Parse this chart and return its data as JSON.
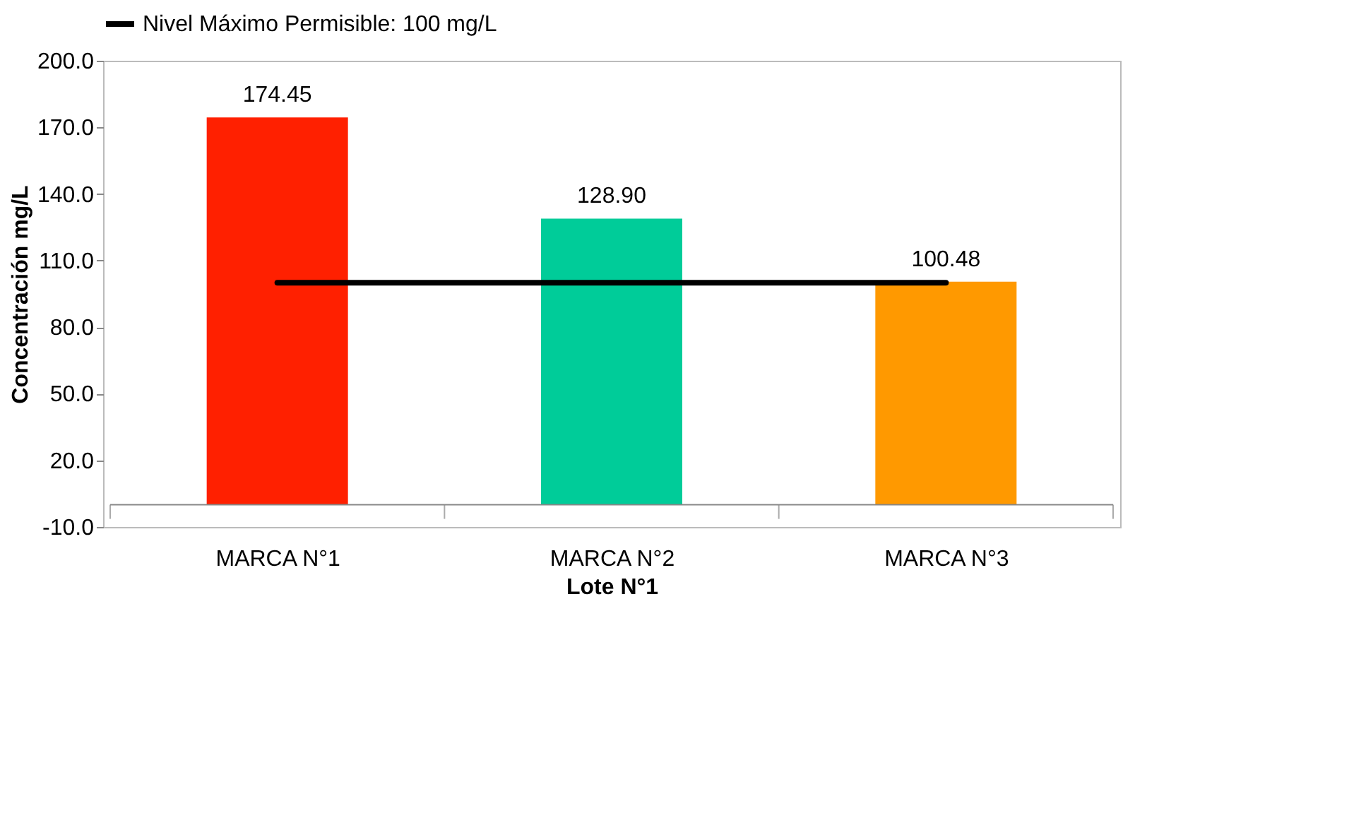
{
  "chart_data": {
    "type": "bar",
    "xlabel": "Lote N°1",
    "ylabel": "Concentración mg/L",
    "categories": [
      "MARCA N°1",
      "MARCA N°2",
      "MARCA N°3"
    ],
    "series": [
      {
        "colors": [
          "#ff2000",
          "#00cc99",
          "#ff9900"
        ],
        "values": [
          174.45,
          128.9,
          100.48
        ],
        "value_labels": [
          "174.45",
          "128.90",
          "100.48"
        ]
      },
      {
        "type": "line",
        "name": "Nivel Máximo Permisible: 100 mg/L",
        "color": "#000000",
        "values": [
          100,
          100,
          100
        ]
      }
    ],
    "ylim": [
      -10,
      200
    ],
    "yticks": [
      {
        "value": -10,
        "label": "-10.0"
      },
      {
        "value": 20,
        "label": "20.0"
      },
      {
        "value": 50,
        "label": "50.0"
      },
      {
        "value": 80,
        "label": "80.0"
      },
      {
        "value": 110,
        "label": "110.0"
      },
      {
        "value": 140,
        "label": "140.0"
      },
      {
        "value": 170,
        "label": "170.0"
      },
      {
        "value": 200,
        "label": "200.0"
      }
    ],
    "grid": false,
    "legend": "top",
    "marker": "none",
    "line_style": "solid"
  }
}
